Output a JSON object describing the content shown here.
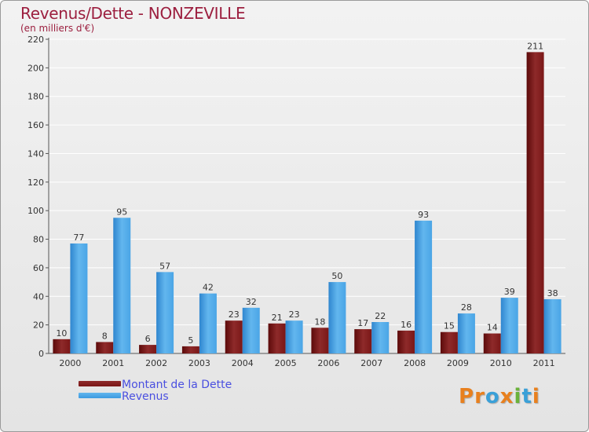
{
  "header": {
    "title": "Revenus/Dette - NONZEVILLE",
    "subtitle": "(en milliers d'€)"
  },
  "logo": {
    "text": "Proxiti",
    "letters": [
      {
        "ch": "P",
        "color": "#e8801e"
      },
      {
        "ch": "r",
        "color": "#e8801e"
      },
      {
        "ch": "o",
        "color": "#3aa0d8"
      },
      {
        "ch": "x",
        "color": "#e8801e"
      },
      {
        "ch": "i",
        "color": "#6ab23a"
      },
      {
        "ch": "t",
        "color": "#3aa0d8"
      },
      {
        "ch": "i",
        "color": "#e8801e"
      }
    ]
  },
  "chart_data": {
    "type": "bar",
    "title": "Revenus/Dette - NONZEVILLE",
    "subtitle": "(en milliers d'€)",
    "xlabel": "",
    "ylabel": "",
    "ylim": [
      0,
      220
    ],
    "yticks": [
      0,
      20,
      40,
      60,
      80,
      100,
      120,
      140,
      160,
      180,
      200,
      220
    ],
    "grid": true,
    "legend_position": "bottom-left",
    "categories": [
      "2000",
      "2001",
      "2002",
      "2003",
      "2004",
      "2005",
      "2006",
      "2007",
      "2008",
      "2009",
      "2010",
      "2011"
    ],
    "series": [
      {
        "name": "Montant de la Dette",
        "color": "#7a1515",
        "values": [
          10,
          8,
          6,
          5,
          23,
          21,
          18,
          17,
          16,
          15,
          14,
          211
        ]
      },
      {
        "name": "Revenus",
        "color": "#3d9ae0",
        "values": [
          77,
          95,
          57,
          42,
          32,
          23,
          50,
          22,
          93,
          28,
          39,
          38
        ]
      }
    ]
  }
}
